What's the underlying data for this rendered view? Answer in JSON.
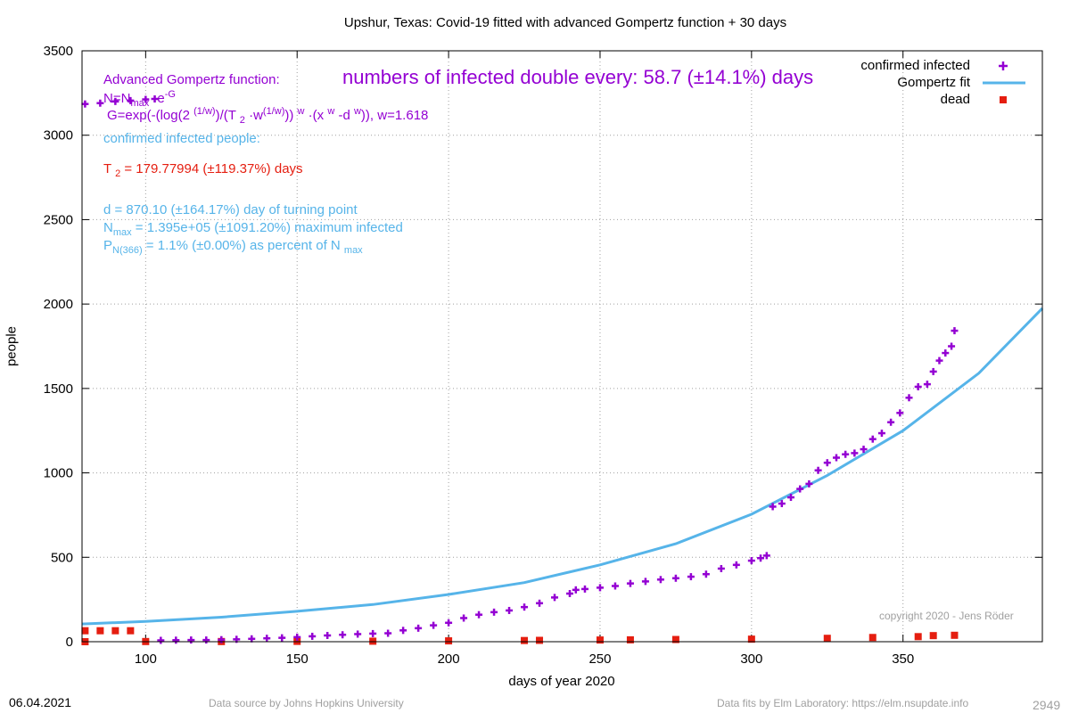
{
  "footer": {
    "date": "06.04.2021",
    "source": "Data source by Johns Hopkins University",
    "fits": "Data fits by Elm Laboratory: https://elm.nsupdate.info",
    "id": "2949"
  },
  "annotations": {
    "model_title": "Advanced Gompertz function:",
    "eq1_a": "N=N",
    "eq1_sub": "max",
    "eq1_b": " ·e",
    "eq1_sup": "-G",
    "eq2_a": "G=exp(-(log(2 ",
    "eq2_sup1": "(1/w)",
    "eq2_b": ")/(T ",
    "eq2_sub1": "2",
    "eq2_c": " ·w",
    "eq2_sup2": "(1/w)",
    "eq2_d": ")) ",
    "eq2_sup3": "w",
    "eq2_e": " ·(x ",
    "eq2_sup4": "w",
    "eq2_f": " -d ",
    "eq2_sup5": "w",
    "eq2_g": ")), w=1.618",
    "confirmed_heading": "confirmed infected people:",
    "t2_a": "T ",
    "t2_sub": "2",
    "t2_b": " = 179.77994 (±119.37%) days",
    "doubling": "numbers of infected double every: 58.7 (±14.1%) days",
    "turning": "d = 870.10 (±164.17%) day of turning point",
    "nmax_a": "N",
    "nmax_sub": "max",
    "nmax_b": " = 1.395e+05 (±1091.20%) maximum infected",
    "pn_a": "P",
    "pn_sub": "N(366)",
    "pn_b": " = 1.1% (±0.00%) as percent of N ",
    "pn_sub2": "max",
    "copyright": "copyright 2020 - Jens Röder"
  },
  "colors": {
    "infected": "#9400d3",
    "fit": "#56b4e9",
    "dead": "#e51e10",
    "grid": "#a0a0a0"
  },
  "chart_data": {
    "type": "scatter",
    "title": "Upshur,  Texas: Covid-19 fitted with advanced Gompertz function + 30 days",
    "xlabel": "days of year 2020",
    "ylabel": "people",
    "xlim": [
      79,
      396
    ],
    "ylim": [
      0,
      3500
    ],
    "xticks": [
      100,
      150,
      200,
      250,
      300,
      350
    ],
    "yticks": [
      0,
      500,
      1000,
      1500,
      2000,
      2500,
      3000,
      3500
    ],
    "grid": true,
    "legend_position": "top-right",
    "series": [
      {
        "name": "confirmed infected",
        "marker": "plus",
        "points": [
          [
            80,
            3185
          ],
          [
            85,
            3190
          ],
          [
            90,
            3200
          ],
          [
            95,
            3205
          ],
          [
            100,
            3212
          ],
          [
            103,
            3215
          ],
          [
            105,
            8
          ],
          [
            110,
            9
          ],
          [
            115,
            10
          ],
          [
            120,
            10
          ],
          [
            125,
            12
          ],
          [
            130,
            14
          ],
          [
            135,
            17
          ],
          [
            140,
            20
          ],
          [
            145,
            23
          ],
          [
            150,
            27
          ],
          [
            155,
            32
          ],
          [
            160,
            37
          ],
          [
            165,
            41
          ],
          [
            170,
            45
          ],
          [
            175,
            48
          ],
          [
            180,
            50
          ],
          [
            185,
            67
          ],
          [
            190,
            80
          ],
          [
            195,
            97
          ],
          [
            200,
            112
          ],
          [
            205,
            140
          ],
          [
            210,
            160
          ],
          [
            215,
            175
          ],
          [
            220,
            185
          ],
          [
            225,
            205
          ],
          [
            230,
            228
          ],
          [
            235,
            262
          ],
          [
            240,
            285
          ],
          [
            242,
            307
          ],
          [
            245,
            312
          ],
          [
            250,
            320
          ],
          [
            255,
            330
          ],
          [
            260,
            345
          ],
          [
            265,
            357
          ],
          [
            270,
            368
          ],
          [
            275,
            376
          ],
          [
            280,
            385
          ],
          [
            285,
            400
          ],
          [
            290,
            433
          ],
          [
            295,
            455
          ],
          [
            300,
            480
          ],
          [
            303,
            495
          ],
          [
            305,
            510
          ],
          [
            307,
            800
          ],
          [
            310,
            818
          ],
          [
            313,
            855
          ],
          [
            316,
            905
          ],
          [
            319,
            935
          ],
          [
            322,
            1015
          ],
          [
            325,
            1060
          ],
          [
            328,
            1090
          ],
          [
            331,
            1110
          ],
          [
            334,
            1117
          ],
          [
            337,
            1140
          ],
          [
            340,
            1200
          ],
          [
            343,
            1235
          ],
          [
            346,
            1300
          ],
          [
            349,
            1355
          ],
          [
            352,
            1445
          ],
          [
            355,
            1510
          ],
          [
            358,
            1525
          ],
          [
            360,
            1600
          ],
          [
            362,
            1665
          ],
          [
            364,
            1710
          ],
          [
            366,
            1750
          ],
          [
            367,
            1842
          ]
        ]
      },
      {
        "name": "Gompertz fit",
        "style": "line",
        "points": [
          [
            79,
            105
          ],
          [
            100,
            120
          ],
          [
            125,
            145
          ],
          [
            150,
            180
          ],
          [
            175,
            220
          ],
          [
            200,
            280
          ],
          [
            225,
            350
          ],
          [
            250,
            455
          ],
          [
            275,
            580
          ],
          [
            300,
            755
          ],
          [
            325,
            985
          ],
          [
            350,
            1250
          ],
          [
            375,
            1590
          ],
          [
            396,
            1975
          ]
        ]
      },
      {
        "name": "dead",
        "marker": "square",
        "points": [
          [
            80,
            65
          ],
          [
            85,
            65
          ],
          [
            90,
            65
          ],
          [
            95,
            65
          ],
          [
            80,
            0
          ],
          [
            100,
            1
          ],
          [
            125,
            1
          ],
          [
            150,
            2
          ],
          [
            175,
            3
          ],
          [
            200,
            5
          ],
          [
            225,
            7
          ],
          [
            230,
            8
          ],
          [
            250,
            10
          ],
          [
            260,
            11
          ],
          [
            275,
            13
          ],
          [
            300,
            15
          ],
          [
            325,
            20
          ],
          [
            340,
            25
          ],
          [
            355,
            30
          ],
          [
            360,
            36
          ],
          [
            367,
            38
          ]
        ]
      }
    ]
  }
}
